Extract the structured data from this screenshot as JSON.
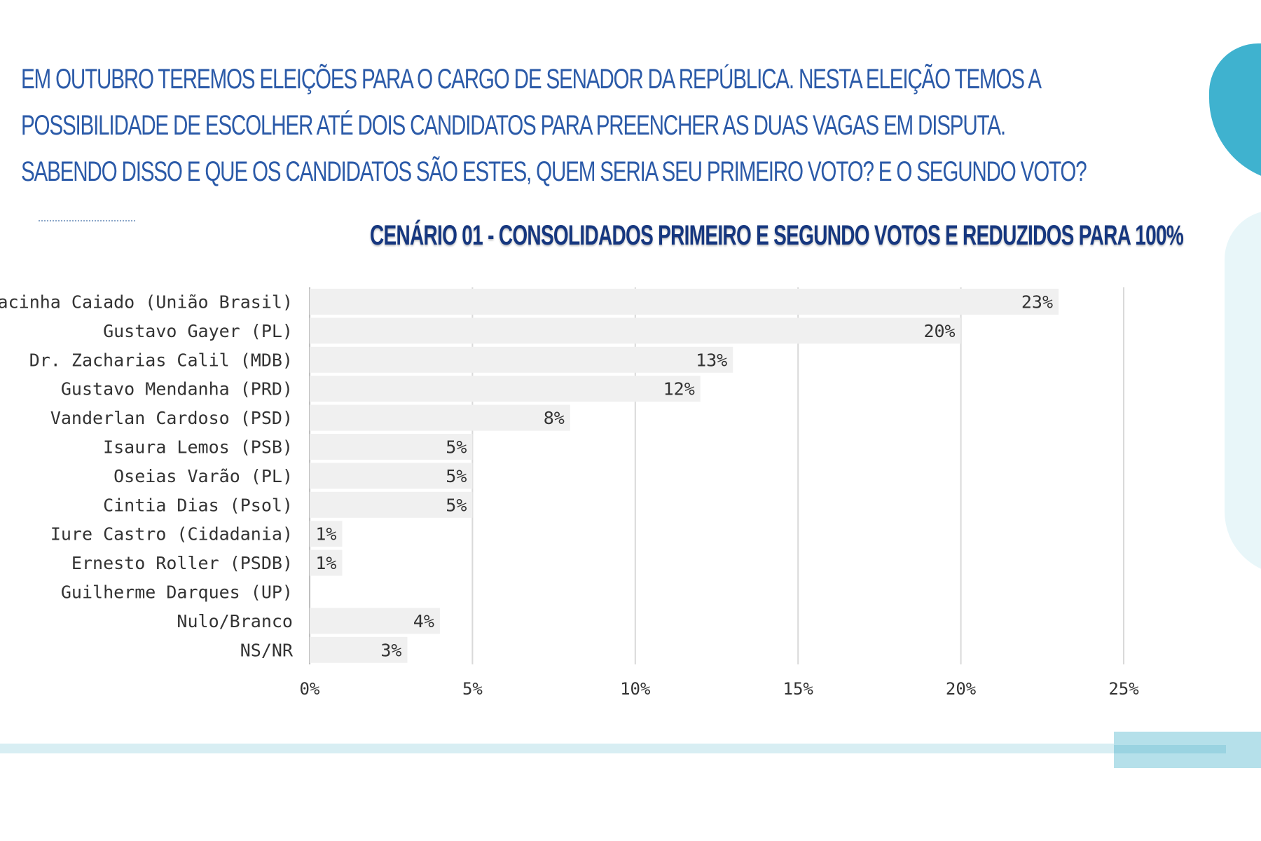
{
  "question": {
    "line1": "EM OUTUBRO TEREMOS ELEIÇÕES PARA O CARGO DE SENADOR DA REPÚBLICA. NESTA ELEIÇÃO TEMOS A",
    "line2": "POSSIBILIDADE DE ESCOLHER ATÉ DOIS CANDIDATOS PARA PREENCHER AS DUAS VAGAS EM DISPUTA.",
    "line3": "SABENDO DISSO E QUE OS CANDIDATOS SÃO ESTES, QUEM SERIA SEU PRIMEIRO VOTO? E O SEGUNDO VOTO?"
  },
  "colors": {
    "question_text": "#2b5aa8",
    "title_text": "#16377f",
    "bar_fill": "#f0f0f0",
    "gridline": "#d9d9d9",
    "accent_cyan": "#3fb2cf",
    "accent_light": "#d8eef3"
  },
  "chart_data": {
    "type": "bar",
    "orientation": "horizontal",
    "title": "CENÁRIO 01 - CONSOLIDADOS PRIMEIRO E SEGUNDO VOTOS E REDUZIDOS PARA 100%",
    "categories": [
      "Gracinha Caiado (União Brasil)",
      "Gustavo Gayer (PL)",
      "Dr. Zacharias Calil (MDB)",
      "Gustavo Mendanha (PRD)",
      "Vanderlan Cardoso (PSD)",
      "Isaura Lemos (PSB)",
      "Oseias Varão (PL)",
      "Cintia Dias (Psol)",
      "Iure Castro (Cidadania)",
      "Ernesto Roller (PSDB)",
      "Guilherme Darques (UP)",
      "Nulo/Branco",
      "NS/NR"
    ],
    "values": [
      23,
      20,
      13,
      12,
      8,
      5,
      5,
      5,
      1,
      1,
      0,
      4,
      3
    ],
    "data_labels": [
      "23%",
      "20%",
      "13%",
      "12%",
      "8%",
      "5%",
      "5%",
      "5%",
      "1%",
      "1%",
      "",
      "4%",
      "3%"
    ],
    "x_ticks": [
      0,
      5,
      10,
      15,
      20,
      25
    ],
    "x_tick_labels": [
      "0%",
      "5%",
      "10%",
      "15%",
      "20%",
      "25%"
    ],
    "xlim": [
      0,
      25
    ],
    "grid": "vertical",
    "legend": "none"
  }
}
